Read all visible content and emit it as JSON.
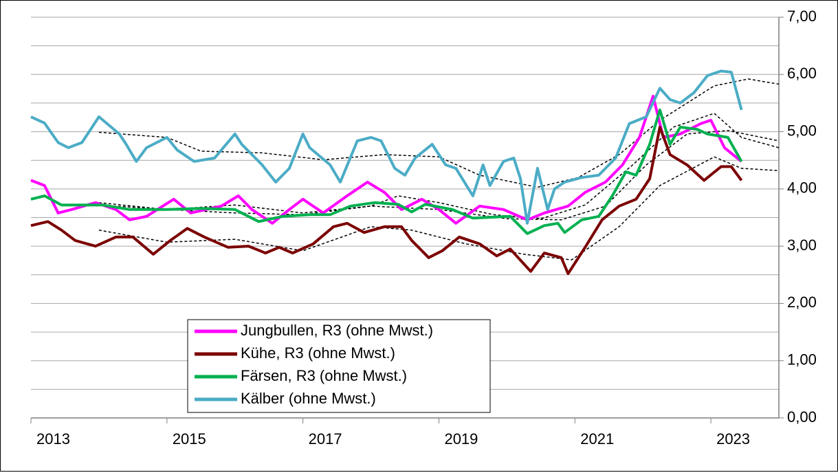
{
  "chart_data": {
    "type": "line",
    "xlim": [
      2013,
      2024
    ],
    "xticks": [
      2013,
      2015,
      2017,
      2019,
      2021,
      2023
    ],
    "ylim": [
      0,
      7
    ],
    "yticks": [
      {
        "value": 0,
        "label": "0,00"
      },
      {
        "value": 1,
        "label": "1,00"
      },
      {
        "value": 2,
        "label": "2,00"
      },
      {
        "value": 3,
        "label": "3,00"
      },
      {
        "value": 4,
        "label": "4,00"
      },
      {
        "value": 5,
        "label": "5,00"
      },
      {
        "value": 6,
        "label": "6,00"
      },
      {
        "value": 7,
        "label": "7,00"
      }
    ],
    "yminor": [
      0.5,
      1.5,
      2.5,
      3.5,
      4.5,
      5.5,
      6.5
    ],
    "grid": true,
    "series": [
      {
        "name": "Jungbullen, R3 (ohne Mwst.)",
        "color": "#ff00ff",
        "x": [
          2013.0,
          2013.2,
          2013.4,
          2013.6,
          2013.95,
          2014.25,
          2014.45,
          2014.7,
          2015.1,
          2015.35,
          2015.8,
          2016.05,
          2016.25,
          2016.55,
          2016.8,
          2017.0,
          2017.3,
          2017.65,
          2017.95,
          2018.2,
          2018.45,
          2018.75,
          2019.0,
          2019.25,
          2019.6,
          2019.95,
          2020.3,
          2020.55,
          2020.9,
          2021.15,
          2021.45,
          2021.7,
          2021.95,
          2022.15,
          2022.3,
          2022.55,
          2022.85,
          2023.0,
          2023.2,
          2023.45
        ],
        "values": [
          4.15,
          4.06,
          3.58,
          3.64,
          3.76,
          3.64,
          3.46,
          3.52,
          3.82,
          3.58,
          3.7,
          3.88,
          3.64,
          3.4,
          3.64,
          3.82,
          3.58,
          3.88,
          4.12,
          3.94,
          3.64,
          3.82,
          3.64,
          3.4,
          3.7,
          3.64,
          3.46,
          3.58,
          3.7,
          3.94,
          4.12,
          4.42,
          4.9,
          5.62,
          4.9,
          4.96,
          5.14,
          5.2,
          4.72,
          4.48
        ]
      },
      {
        "name": "Kühe, R3 (ohne Mwst.)",
        "color": "#7b0000",
        "x": [
          2013.0,
          2013.25,
          2013.45,
          2013.65,
          2013.95,
          2014.25,
          2014.5,
          2014.8,
          2015.05,
          2015.3,
          2015.55,
          2015.9,
          2016.2,
          2016.45,
          2016.65,
          2016.85,
          2017.15,
          2017.45,
          2017.65,
          2017.9,
          2018.2,
          2018.45,
          2018.6,
          2018.85,
          2019.05,
          2019.3,
          2019.6,
          2019.85,
          2020.05,
          2020.35,
          2020.55,
          2020.8,
          2020.9,
          2021.15,
          2021.4,
          2021.65,
          2021.9,
          2022.1,
          2022.25,
          2022.4,
          2022.65,
          2022.9,
          2023.15,
          2023.3,
          2023.45
        ],
        "values": [
          3.36,
          3.43,
          3.28,
          3.1,
          3.0,
          3.16,
          3.16,
          2.86,
          3.1,
          3.31,
          3.16,
          2.98,
          3.0,
          2.88,
          2.98,
          2.88,
          3.04,
          3.34,
          3.4,
          3.24,
          3.34,
          3.34,
          3.1,
          2.8,
          2.92,
          3.16,
          3.04,
          2.83,
          2.95,
          2.56,
          2.88,
          2.8,
          2.52,
          2.98,
          3.46,
          3.7,
          3.82,
          4.18,
          5.08,
          4.6,
          4.42,
          4.15,
          4.39,
          4.39,
          4.15
        ]
      },
      {
        "name": "Färsen, R3 (ohne Mwst.)",
        "color": "#00b050",
        "x": [
          2013.0,
          2013.2,
          2013.45,
          2013.75,
          2014.05,
          2014.45,
          2015.0,
          2015.5,
          2016.0,
          2016.35,
          2016.7,
          2017.1,
          2017.4,
          2017.7,
          2018.05,
          2018.4,
          2018.6,
          2018.8,
          2019.2,
          2019.5,
          2020.05,
          2020.3,
          2020.55,
          2020.75,
          2020.85,
          2021.1,
          2021.35,
          2021.55,
          2021.75,
          2021.9,
          2022.1,
          2022.25,
          2022.4,
          2022.55,
          2022.8,
          2022.95,
          2023.25,
          2023.45
        ],
        "values": [
          3.82,
          3.88,
          3.72,
          3.72,
          3.72,
          3.64,
          3.64,
          3.66,
          3.64,
          3.43,
          3.52,
          3.55,
          3.55,
          3.7,
          3.76,
          3.73,
          3.6,
          3.73,
          3.64,
          3.49,
          3.52,
          3.22,
          3.36,
          3.4,
          3.24,
          3.46,
          3.52,
          3.88,
          4.3,
          4.24,
          4.78,
          5.38,
          4.78,
          5.08,
          5.04,
          4.96,
          4.9,
          4.48
        ]
      },
      {
        "name": "Kälber (ohne Mwst.)",
        "color": "#4bacc6",
        "x": [
          2013.0,
          2013.2,
          2013.4,
          2013.55,
          2013.75,
          2014.0,
          2014.3,
          2014.4,
          2014.55,
          2014.7,
          2015.0,
          2015.15,
          2015.4,
          2015.7,
          2016.0,
          2016.1,
          2016.4,
          2016.6,
          2016.8,
          2017.0,
          2017.1,
          2017.4,
          2017.55,
          2017.8,
          2018.0,
          2018.15,
          2018.35,
          2018.5,
          2018.65,
          2018.9,
          2019.1,
          2019.25,
          2019.5,
          2019.65,
          2019.75,
          2019.95,
          2020.1,
          2020.2,
          2020.3,
          2020.45,
          2020.6,
          2020.7,
          2020.85,
          2021.1,
          2021.35,
          2021.6,
          2021.8,
          2022.05,
          2022.25,
          2022.4,
          2022.55,
          2022.75,
          2022.95,
          2023.15,
          2023.3,
          2023.45
        ],
        "values": [
          5.26,
          5.15,
          4.81,
          4.72,
          4.81,
          5.26,
          4.96,
          4.78,
          4.48,
          4.72,
          4.9,
          4.68,
          4.48,
          4.54,
          4.96,
          4.78,
          4.42,
          4.12,
          4.36,
          4.96,
          4.72,
          4.42,
          4.12,
          4.84,
          4.9,
          4.84,
          4.36,
          4.24,
          4.54,
          4.78,
          4.42,
          4.36,
          3.88,
          4.42,
          4.06,
          4.48,
          4.54,
          4.18,
          3.4,
          4.36,
          3.64,
          4.0,
          4.12,
          4.2,
          4.24,
          4.54,
          5.14,
          5.26,
          5.76,
          5.56,
          5.5,
          5.68,
          5.98,
          6.06,
          6.04,
          5.38
        ]
      }
    ],
    "trends": [
      {
        "color": "#000000",
        "x": [
          2014.0,
          2015.0,
          2015.5,
          2016.4,
          2017.3,
          2018.2,
          2019.0,
          2019.6,
          2020.45,
          2021.05,
          2021.65,
          2022.25,
          2023.05,
          2023.55,
          2024.0
        ],
        "values": [
          4.99,
          4.9,
          4.66,
          4.63,
          4.51,
          4.6,
          4.56,
          4.24,
          4.03,
          4.2,
          4.6,
          5.2,
          5.8,
          5.92,
          5.83
        ]
      },
      {
        "color": "#000000",
        "x": [
          2014.0,
          2015.0,
          2016.0,
          2017.0,
          2018.0,
          2018.4,
          2019.0,
          2019.8,
          2020.5,
          2021.15,
          2021.85,
          2022.45,
          2023.05,
          2023.45,
          2024.0
        ],
        "values": [
          3.76,
          3.64,
          3.72,
          3.58,
          3.7,
          3.88,
          3.76,
          3.55,
          3.48,
          3.72,
          4.42,
          5.08,
          5.32,
          4.9,
          4.72
        ]
      },
      {
        "color": "#000000",
        "x": [
          2014.0,
          2015.0,
          2016.0,
          2017.0,
          2018.0,
          2019.0,
          2020.0,
          2020.8,
          2021.45,
          2022.05,
          2022.65,
          2023.25,
          2024.0
        ],
        "values": [
          3.72,
          3.64,
          3.58,
          3.55,
          3.7,
          3.64,
          3.48,
          3.46,
          3.7,
          4.42,
          4.96,
          5.02,
          4.84
        ]
      },
      {
        "color": "#000000",
        "x": [
          2014.0,
          2015.0,
          2016.0,
          2017.0,
          2018.0,
          2018.6,
          2019.4,
          2020.25,
          2020.95,
          2021.65,
          2022.25,
          2023.05,
          2023.45,
          2024.0
        ],
        "values": [
          3.28,
          3.07,
          3.12,
          2.92,
          3.34,
          3.28,
          3.04,
          2.86,
          2.76,
          3.34,
          4.06,
          4.56,
          4.36,
          4.32
        ]
      }
    ]
  }
}
